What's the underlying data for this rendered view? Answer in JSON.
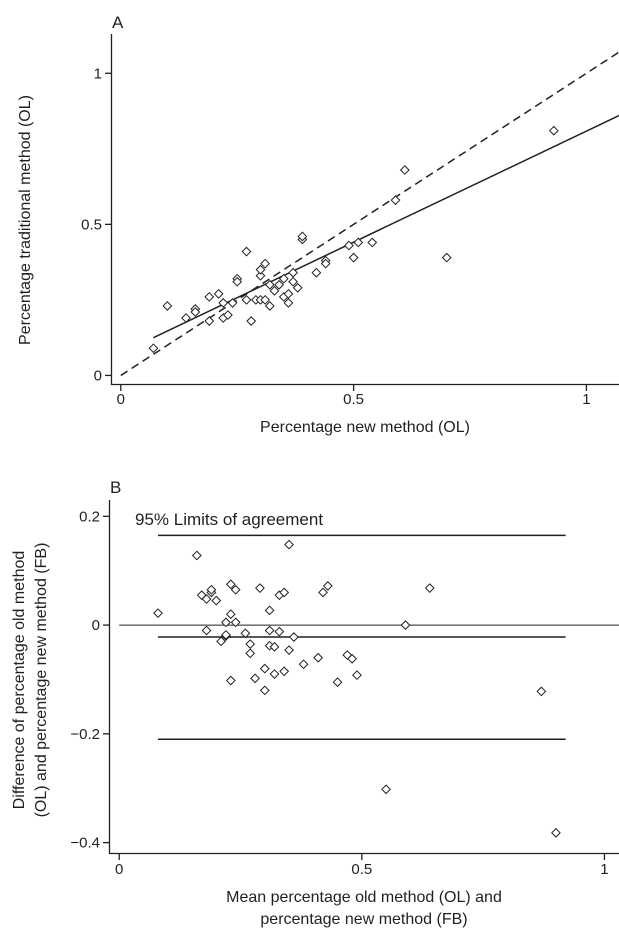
{
  "chart_data": [
    {
      "panel": "A",
      "type": "scatter",
      "xlabel": "Percentage new method (OL)",
      "ylabel": "Percentage traditional method (OL)",
      "xlim": [
        -0.02,
        1.07
      ],
      "ylim": [
        -0.03,
        1.13
      ],
      "xticks": [
        0,
        0.5,
        1
      ],
      "xtick_labels": [
        "0",
        "0.5",
        "1"
      ],
      "yticks": [
        0,
        0.5,
        1
      ],
      "ytick_labels": [
        "0",
        "0.5",
        "1"
      ],
      "grid": false,
      "marker": "diamond",
      "points": [
        [
          0.07,
          0.09
        ],
        [
          0.1,
          0.23
        ],
        [
          0.14,
          0.19
        ],
        [
          0.16,
          0.22
        ],
        [
          0.16,
          0.21
        ],
        [
          0.19,
          0.18
        ],
        [
          0.19,
          0.26
        ],
        [
          0.21,
          0.27
        ],
        [
          0.22,
          0.24
        ],
        [
          0.22,
          0.19
        ],
        [
          0.23,
          0.2
        ],
        [
          0.24,
          0.24
        ],
        [
          0.25,
          0.32
        ],
        [
          0.25,
          0.31
        ],
        [
          0.27,
          0.25
        ],
        [
          0.27,
          0.41
        ],
        [
          0.28,
          0.18
        ],
        [
          0.29,
          0.25
        ],
        [
          0.3,
          0.25
        ],
        [
          0.3,
          0.33
        ],
        [
          0.3,
          0.35
        ],
        [
          0.31,
          0.25
        ],
        [
          0.31,
          0.37
        ],
        [
          0.32,
          0.23
        ],
        [
          0.32,
          0.3
        ],
        [
          0.33,
          0.28
        ],
        [
          0.34,
          0.3
        ],
        [
          0.35,
          0.26
        ],
        [
          0.35,
          0.32
        ],
        [
          0.36,
          0.24
        ],
        [
          0.36,
          0.27
        ],
        [
          0.37,
          0.31
        ],
        [
          0.37,
          0.34
        ],
        [
          0.38,
          0.29
        ],
        [
          0.39,
          0.45
        ],
        [
          0.39,
          0.46
        ],
        [
          0.42,
          0.34
        ],
        [
          0.44,
          0.38
        ],
        [
          0.44,
          0.37
        ],
        [
          0.49,
          0.43
        ],
        [
          0.5,
          0.39
        ],
        [
          0.51,
          0.44
        ],
        [
          0.54,
          0.44
        ],
        [
          0.59,
          0.58
        ],
        [
          0.61,
          0.68
        ],
        [
          0.7,
          0.39
        ],
        [
          0.93,
          0.81
        ]
      ],
      "regression_line": {
        "x": [
          0.07,
          1.07
        ],
        "y": [
          0.125,
          0.86
        ]
      },
      "identity_line": {
        "x": [
          0,
          1.07
        ],
        "y": [
          0,
          1.07
        ]
      }
    },
    {
      "panel": "B",
      "type": "scatter",
      "xlabel": "Mean percentage old method (OL) and percentage new method (FB)",
      "xlabel_lines": [
        "Mean percentage old method (OL) and",
        "percentage new method (FB)"
      ],
      "ylabel": "Difference of percentage old method (OL) and percentage new method (FB)",
      "ylabel_lines": [
        "Difference of percentage old method",
        "(OL) and percentage new method (FB)"
      ],
      "xlim": [
        -0.02,
        1.03
      ],
      "ylim": [
        -0.42,
        0.23
      ],
      "xticks": [
        0,
        0.5,
        1
      ],
      "xtick_labels": [
        "0",
        "0.5",
        "1"
      ],
      "yticks": [
        0.2,
        0,
        -0.2,
        -0.4
      ],
      "ytick_labels": [
        "0.2",
        "0",
        "−0.2",
        "−0.4"
      ],
      "grid": false,
      "marker": "diamond",
      "annotation": "95% Limits of agreement",
      "horizontal_lines": [
        {
          "y": 0.165,
          "x": [
            0.08,
            0.92
          ]
        },
        {
          "y": -0.022,
          "x": [
            0.08,
            0.92
          ]
        },
        {
          "y": -0.21,
          "x": [
            0.08,
            0.92
          ]
        }
      ],
      "zero_line": {
        "y": 0,
        "x": [
          0,
          1.03
        ]
      },
      "points": [
        [
          0.08,
          0.022
        ],
        [
          0.16,
          0.128
        ],
        [
          0.17,
          0.055
        ],
        [
          0.18,
          -0.01
        ],
        [
          0.18,
          0.048
        ],
        [
          0.19,
          0.06
        ],
        [
          0.19,
          0.065
        ],
        [
          0.2,
          0.045
        ],
        [
          0.21,
          -0.03
        ],
        [
          0.22,
          -0.02
        ],
        [
          0.22,
          0.005
        ],
        [
          0.22,
          -0.018
        ],
        [
          0.23,
          0.075
        ],
        [
          0.23,
          -0.102
        ],
        [
          0.23,
          0.02
        ],
        [
          0.24,
          0.065
        ],
        [
          0.24,
          0.005
        ],
        [
          0.26,
          -0.015
        ],
        [
          0.27,
          -0.035
        ],
        [
          0.27,
          -0.052
        ],
        [
          0.28,
          -0.098
        ],
        [
          0.29,
          0.068
        ],
        [
          0.3,
          -0.08
        ],
        [
          0.3,
          -0.12
        ],
        [
          0.31,
          -0.038
        ],
        [
          0.31,
          -0.01
        ],
        [
          0.31,
          0.027
        ],
        [
          0.32,
          -0.04
        ],
        [
          0.32,
          -0.09
        ],
        [
          0.33,
          -0.012
        ],
        [
          0.33,
          0.055
        ],
        [
          0.34,
          0.06
        ],
        [
          0.34,
          -0.085
        ],
        [
          0.35,
          0.148
        ],
        [
          0.35,
          -0.046
        ],
        [
          0.36,
          -0.022
        ],
        [
          0.38,
          -0.072
        ],
        [
          0.41,
          -0.06
        ],
        [
          0.42,
          0.06
        ],
        [
          0.43,
          0.072
        ],
        [
          0.45,
          -0.105
        ],
        [
          0.47,
          -0.055
        ],
        [
          0.48,
          -0.062
        ],
        [
          0.49,
          -0.092
        ],
        [
          0.55,
          -0.302
        ],
        [
          0.59,
          0.0
        ],
        [
          0.64,
          0.068
        ],
        [
          0.87,
          -0.122
        ],
        [
          0.9,
          -0.382
        ]
      ]
    }
  ]
}
